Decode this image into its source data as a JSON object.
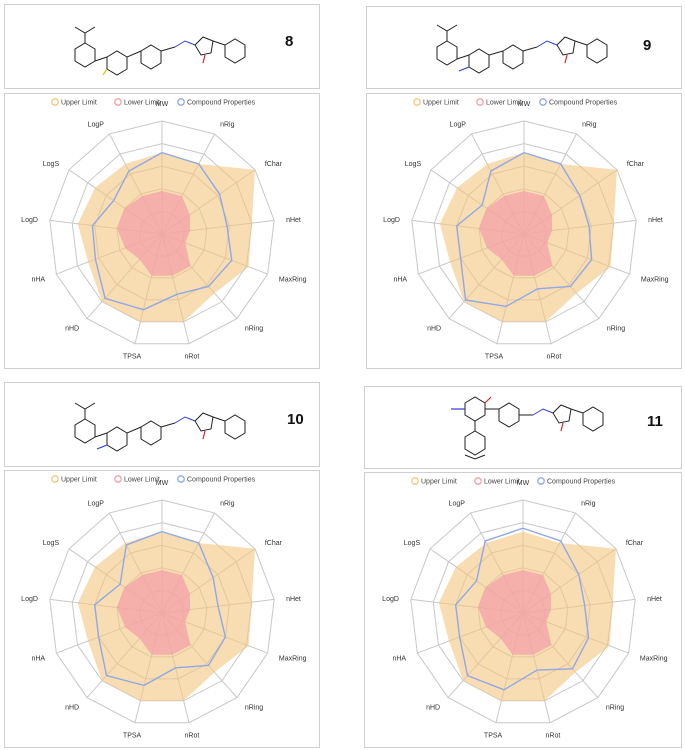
{
  "legend": [
    {
      "label": "Upper Limit",
      "color": "#f5c77e"
    },
    {
      "label": "Lower Limit",
      "color": "#f4a0a8"
    },
    {
      "label": "Compound Properties",
      "color": "#8fa8e8"
    }
  ],
  "axes": [
    "MW",
    "nRig",
    "fChar",
    "nHet",
    "MaxRing",
    "nRing",
    "nRot",
    "TPSA",
    "nHD",
    "nHA",
    "LogD",
    "LogS",
    "LogP"
  ],
  "colors": {
    "upper": "#f5c77e",
    "lower": "#f4a0a8",
    "compound": "#8fa8e8",
    "grid": "#c8c8c8"
  },
  "chart_data": [
    {
      "type": "radar",
      "id": "8",
      "axes": [
        "MW",
        "nRig",
        "fChar",
        "nHet",
        "MaxRing",
        "nRing",
        "nRot",
        "TPSA",
        "nHD",
        "nHA",
        "LogD",
        "LogS",
        "LogP"
      ],
      "range": [
        0,
        1
      ],
      "series": [
        {
          "name": "Upper Limit",
          "values": [
            0.72,
            0.7,
            1.0,
            0.8,
            0.82,
            0.7,
            0.8,
            0.8,
            0.8,
            0.7,
            0.75,
            0.72,
            0.7
          ]
        },
        {
          "name": "Lower Limit",
          "values": [
            0.38,
            0.38,
            0.3,
            0.25,
            0.22,
            0.38,
            0.38,
            0.38,
            0.3,
            0.35,
            0.4,
            0.4,
            0.38
          ]
        },
        {
          "name": "Compound Properties",
          "values": [
            0.72,
            0.7,
            0.62,
            0.58,
            0.66,
            0.62,
            0.55,
            0.69,
            0.76,
            0.63,
            0.62,
            0.52,
            0.63
          ]
        }
      ]
    },
    {
      "type": "radar",
      "id": "9",
      "axes": [
        "MW",
        "nRig",
        "fChar",
        "nHet",
        "MaxRing",
        "nRing",
        "nRot",
        "TPSA",
        "nHD",
        "nHA",
        "LogD",
        "LogS",
        "LogP"
      ],
      "range": [
        0,
        1
      ],
      "series": [
        {
          "name": "Upper Limit",
          "values": [
            0.72,
            0.7,
            1.0,
            0.8,
            0.82,
            0.7,
            0.8,
            0.8,
            0.8,
            0.7,
            0.75,
            0.72,
            0.7
          ]
        },
        {
          "name": "Lower Limit",
          "values": [
            0.38,
            0.38,
            0.3,
            0.25,
            0.22,
            0.38,
            0.38,
            0.38,
            0.3,
            0.35,
            0.4,
            0.4,
            0.38
          ]
        },
        {
          "name": "Compound Properties",
          "values": [
            0.72,
            0.7,
            0.6,
            0.58,
            0.64,
            0.62,
            0.5,
            0.66,
            0.78,
            0.6,
            0.6,
            0.45,
            0.63
          ]
        }
      ]
    },
    {
      "type": "radar",
      "id": "10",
      "axes": [
        "MW",
        "nRig",
        "fChar",
        "nHet",
        "MaxRing",
        "nRing",
        "nRot",
        "TPSA",
        "nHD",
        "nHA",
        "LogD",
        "LogS",
        "LogP"
      ],
      "range": [
        0,
        1
      ],
      "series": [
        {
          "name": "Upper Limit",
          "values": [
            0.72,
            0.7,
            1.0,
            0.8,
            0.82,
            0.7,
            0.8,
            0.8,
            0.8,
            0.7,
            0.75,
            0.72,
            0.7
          ]
        },
        {
          "name": "Lower Limit",
          "values": [
            0.38,
            0.38,
            0.3,
            0.25,
            0.22,
            0.38,
            0.38,
            0.38,
            0.3,
            0.35,
            0.4,
            0.4,
            0.38
          ]
        },
        {
          "name": "Compound Properties",
          "values": [
            0.72,
            0.7,
            0.55,
            0.5,
            0.6,
            0.62,
            0.5,
            0.66,
            0.74,
            0.6,
            0.6,
            0.45,
            0.68
          ]
        }
      ]
    },
    {
      "type": "radar",
      "id": "11",
      "axes": [
        "MW",
        "nRig",
        "fChar",
        "nHet",
        "MaxRing",
        "nRing",
        "nRot",
        "TPSA",
        "nHD",
        "nHA",
        "LogD",
        "LogS",
        "LogP"
      ],
      "range": [
        0,
        1
      ],
      "series": [
        {
          "name": "Upper Limit",
          "values": [
            0.72,
            0.7,
            1.0,
            0.8,
            0.82,
            0.7,
            0.8,
            0.8,
            0.8,
            0.7,
            0.75,
            0.72,
            0.7
          ]
        },
        {
          "name": "Lower Limit",
          "values": [
            0.38,
            0.38,
            0.3,
            0.25,
            0.22,
            0.38,
            0.38,
            0.38,
            0.3,
            0.35,
            0.4,
            0.4,
            0.38
          ]
        },
        {
          "name": "Compound Properties",
          "values": [
            0.75,
            0.72,
            0.6,
            0.55,
            0.62,
            0.66,
            0.52,
            0.7,
            0.74,
            0.6,
            0.6,
            0.5,
            0.72
          ]
        }
      ]
    }
  ]
}
